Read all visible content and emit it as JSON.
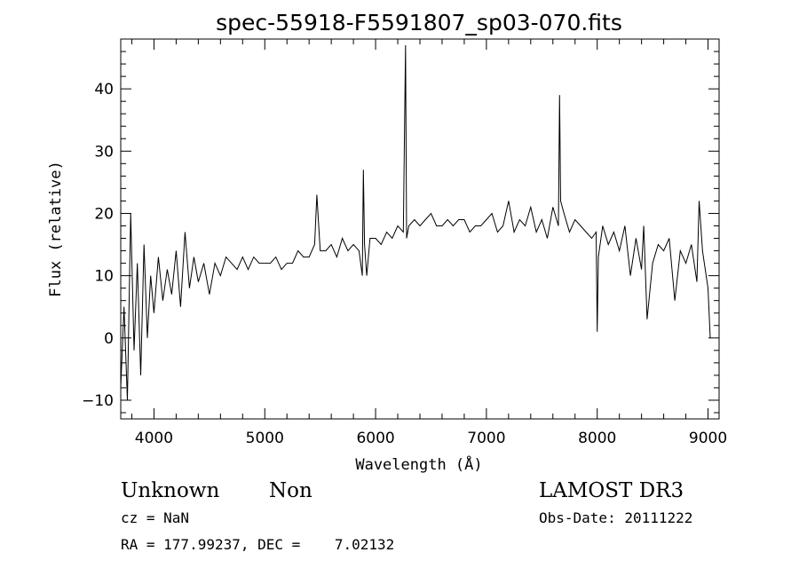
{
  "chart_data": {
    "type": "line",
    "title": "spec-55918-F5591807_sp03-070.fits",
    "xlabel": "Wavelength (Å)",
    "ylabel": "Flux (relative)",
    "xlim": [
      3700,
      9100
    ],
    "ylim": [
      -13,
      48
    ],
    "xticks": [
      "4000",
      "5000",
      "6000",
      "7000",
      "8000",
      "9000"
    ],
    "yticks": [
      "−10",
      "0",
      "10",
      "20",
      "30",
      "40"
    ],
    "grid": false,
    "series": [
      {
        "x": [
          3700,
          3730,
          3760,
          3790,
          3820,
          3850,
          3880,
          3910,
          3940,
          3970,
          4000,
          4040,
          4080,
          4120,
          4160,
          4200,
          4240,
          4280,
          4320,
          4360,
          4400,
          4450,
          4500,
          4550,
          4600,
          4650,
          4700,
          4750,
          4800,
          4850,
          4900,
          4950,
          5000,
          5050,
          5100,
          5150,
          5200,
          5250,
          5300,
          5350,
          5400,
          5450,
          5470,
          5500,
          5550,
          5600,
          5650,
          5700,
          5750,
          5800,
          5850,
          5880,
          5890,
          5900,
          5920,
          5950,
          6000,
          6050,
          6100,
          6150,
          6200,
          6250,
          6270,
          6280,
          6300,
          6350,
          6400,
          6450,
          6500,
          6550,
          6600,
          6650,
          6700,
          6750,
          6800,
          6850,
          6900,
          6950,
          7000,
          7050,
          7100,
          7150,
          7200,
          7250,
          7300,
          7350,
          7400,
          7450,
          7500,
          7550,
          7600,
          7650,
          7660,
          7670,
          7700,
          7750,
          7800,
          7850,
          7900,
          7950,
          7990,
          8000,
          8010,
          8050,
          8100,
          8150,
          8200,
          8250,
          8300,
          8350,
          8400,
          8420,
          8450,
          8500,
          8550,
          8600,
          8650,
          8700,
          8750,
          8800,
          8850,
          8900,
          8920,
          8950,
          9000,
          9020
        ],
        "values": [
          -8,
          5,
          -10,
          20,
          -2,
          12,
          -6,
          15,
          0,
          10,
          4,
          13,
          6,
          11,
          7,
          14,
          5,
          17,
          8,
          13,
          9,
          12,
          7,
          12,
          10,
          13,
          12,
          11,
          13,
          11,
          13,
          12,
          12,
          12,
          13,
          11,
          12,
          12,
          14,
          13,
          13,
          15,
          23,
          14,
          14,
          15,
          13,
          16,
          14,
          15,
          14,
          10,
          27,
          15,
          10,
          16,
          16,
          15,
          17,
          16,
          18,
          17,
          47,
          16,
          18,
          19,
          18,
          19,
          20,
          18,
          18,
          19,
          18,
          19,
          19,
          17,
          18,
          18,
          19,
          20,
          17,
          18,
          22,
          17,
          19,
          18,
          21,
          17,
          19,
          16,
          21,
          18,
          39,
          22,
          20,
          17,
          19,
          18,
          17,
          16,
          17,
          1,
          13,
          18,
          15,
          17,
          14,
          18,
          10,
          16,
          11,
          18,
          3,
          12,
          15,
          14,
          16,
          6,
          14,
          12,
          15,
          9,
          22,
          14,
          8,
          0
        ]
      }
    ]
  },
  "annotations": {
    "class": "Unknown",
    "subclass": "Non",
    "survey": "LAMOST DR3",
    "cz": "cz = NaN",
    "obs_date": "Obs-Date: 20111222",
    "radec": "RA = 177.99237, DEC =    7.02132"
  }
}
